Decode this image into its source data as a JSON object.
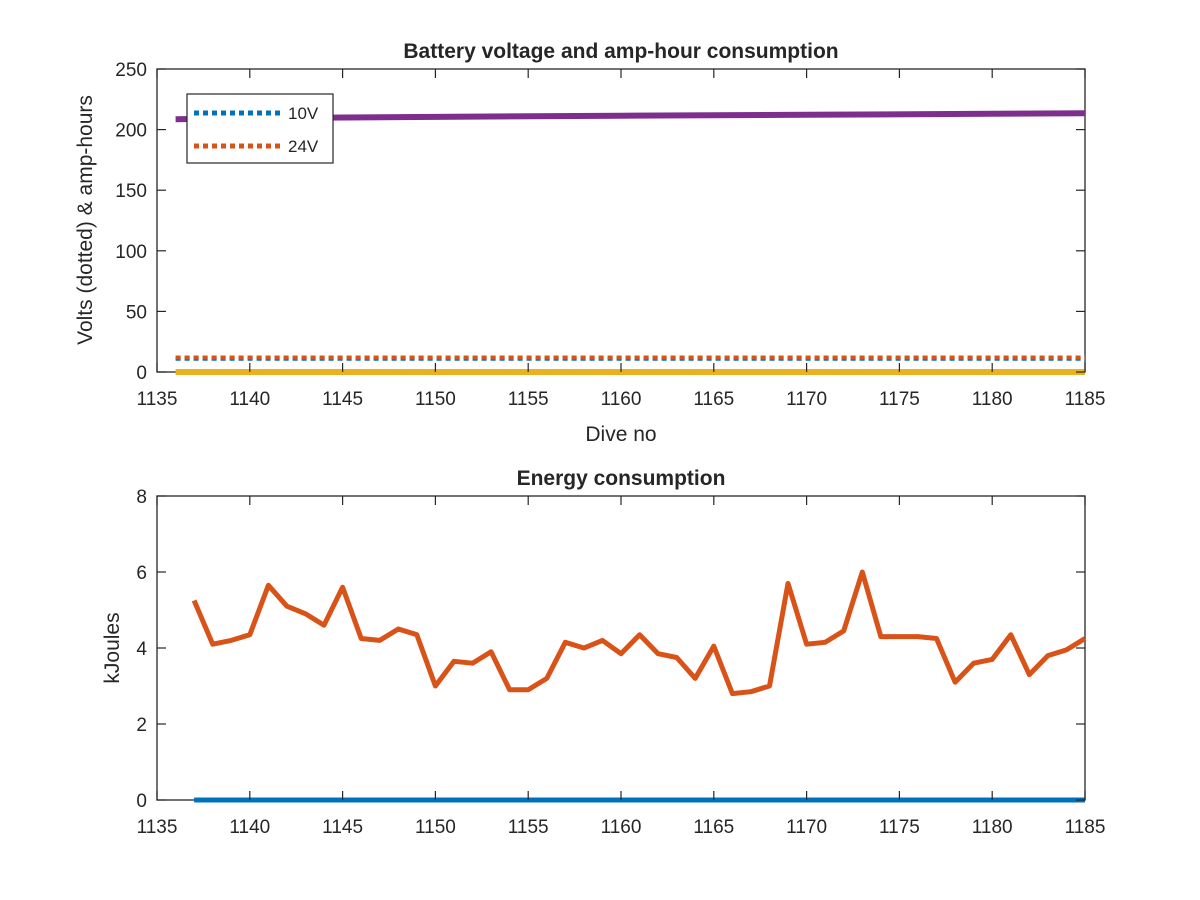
{
  "chart_data": [
    {
      "type": "line",
      "title": "Battery voltage and amp-hour consumption",
      "xlabel": "Dive no",
      "ylabel": "Volts (dotted) & amp-hours",
      "xlim": [
        1135,
        1185
      ],
      "ylim": [
        0,
        250
      ],
      "xticks": [
        "1135",
        "1140",
        "1145",
        "1150",
        "1155",
        "1160",
        "1165",
        "1170",
        "1175",
        "1180",
        "1185"
      ],
      "yticks": [
        "0",
        "50",
        "100",
        "150",
        "200",
        "250"
      ],
      "grid": false,
      "legend": {
        "placement": "top-left",
        "entries": [
          "10V",
          "24V"
        ]
      },
      "series": [
        {
          "name": "10V",
          "style": "dotted",
          "color": "#0072BD",
          "x": [
            1136,
            1185
          ],
          "y": [
            11,
            11
          ]
        },
        {
          "name": "24V",
          "style": "dotted",
          "color": "#D95319",
          "x": [
            1136,
            1185
          ],
          "y": [
            12,
            12
          ]
        },
        {
          "style": "solid",
          "color": "#EDB120",
          "x": [
            1136,
            1185
          ],
          "y": [
            0,
            0
          ]
        },
        {
          "style": "solid",
          "color": "#7E2F8E",
          "x": [
            1136,
            1140,
            1150,
            1160,
            1170,
            1180,
            1185
          ],
          "y": [
            208.5,
            209.5,
            210.5,
            211.5,
            212.2,
            213,
            213.5
          ]
        }
      ]
    },
    {
      "type": "line",
      "title": "Energy consumption",
      "xlabel": "",
      "ylabel": "kJoules",
      "xlim": [
        1135,
        1185
      ],
      "ylim": [
        0,
        8
      ],
      "xticks": [
        "1135",
        "1140",
        "1145",
        "1150",
        "1155",
        "1160",
        "1165",
        "1170",
        "1175",
        "1180",
        "1185"
      ],
      "yticks": [
        "0",
        "2",
        "4",
        "6",
        "8"
      ],
      "grid": false,
      "series": [
        {
          "style": "solid",
          "color": "#D95319",
          "x": [
            1137,
            1138,
            1139,
            1140,
            1141,
            1142,
            1143,
            1144,
            1145,
            1146,
            1147,
            1148,
            1149,
            1150,
            1151,
            1152,
            1153,
            1154,
            1155,
            1156,
            1157,
            1158,
            1159,
            1160,
            1161,
            1162,
            1163,
            1164,
            1165,
            1166,
            1167,
            1168,
            1169,
            1170,
            1171,
            1172,
            1173,
            1174,
            1175,
            1176,
            1177,
            1178,
            1179,
            1180,
            1181,
            1182,
            1183,
            1184,
            1185
          ],
          "y": [
            5.25,
            4.1,
            4.2,
            4.35,
            5.65,
            5.1,
            4.9,
            4.6,
            5.6,
            4.25,
            4.2,
            4.5,
            4.35,
            3.0,
            3.65,
            3.6,
            3.9,
            2.9,
            2.9,
            3.2,
            4.15,
            4.0,
            4.2,
            3.85,
            4.35,
            3.85,
            3.75,
            3.2,
            4.05,
            2.8,
            2.85,
            3.0,
            5.7,
            4.1,
            4.15,
            4.45,
            6.0,
            4.3,
            4.3,
            4.3,
            4.25,
            3.1,
            3.6,
            3.7,
            4.35,
            3.3,
            3.8,
            3.95,
            4.25
          ]
        },
        {
          "style": "solid",
          "color": "#0072BD",
          "x": [
            1137,
            1185
          ],
          "y": [
            0,
            0
          ]
        }
      ]
    }
  ]
}
